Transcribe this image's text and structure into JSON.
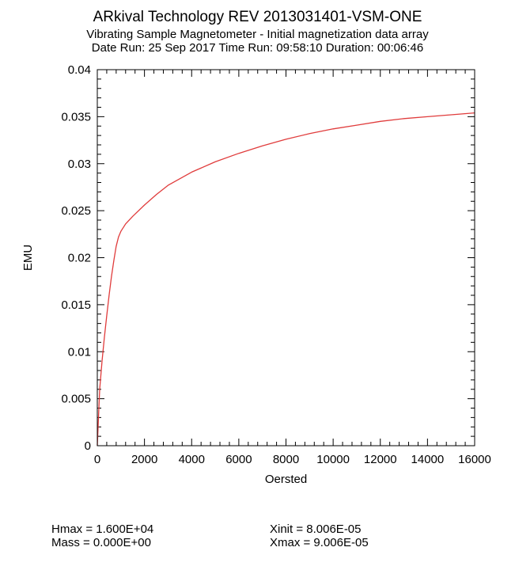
{
  "header": {
    "title": "ARkival Technology REV 2013031401-VSM-ONE",
    "subtitle": "Vibrating Sample Magnetometer - Initial magnetization data array",
    "run_info": "Date Run: 25 Sep 2017 Time Run: 09:58:10 Duration: 00:06:46"
  },
  "footer": {
    "hmax": "Hmax = 1.600E+04",
    "mass": "Mass = 0.000E+00",
    "xinit": "Xinit = 8.006E-05",
    "xmax": "Xmax = 9.006E-05"
  },
  "chart_data": {
    "type": "line",
    "xlabel": "Oersted",
    "ylabel": "EMU",
    "xlim": [
      0,
      16000
    ],
    "ylim": [
      0,
      0.04
    ],
    "xticks": [
      0,
      2000,
      4000,
      6000,
      8000,
      10000,
      12000,
      14000,
      16000
    ],
    "xtick_labels": [
      "0",
      "2000",
      "4000",
      "6000",
      "8000",
      "10000",
      "12000",
      "14000",
      "16000"
    ],
    "yticks": [
      0,
      0.005,
      0.01,
      0.015,
      0.02,
      0.025,
      0.03,
      0.035,
      0.04
    ],
    "ytick_labels": [
      "0",
      "0.005",
      "0.01",
      "0.015",
      "0.02",
      "0.025",
      "0.03",
      "0.035",
      "0.04"
    ],
    "grid": false,
    "series": [
      {
        "color": "#e03c3c",
        "x": [
          0,
          50,
          100,
          200,
          300,
          400,
          500,
          600,
          700,
          800,
          900,
          1000,
          1200,
          1500,
          2000,
          2500,
          3000,
          4000,
          5000,
          6000,
          7000,
          8000,
          9000,
          10000,
          11000,
          12000,
          13000,
          14000,
          15000,
          16000
        ],
        "y": [
          0,
          0.003,
          0.006,
          0.009,
          0.0115,
          0.0138,
          0.016,
          0.018,
          0.0197,
          0.0212,
          0.0222,
          0.0228,
          0.0236,
          0.0244,
          0.0256,
          0.0267,
          0.0277,
          0.0291,
          0.0302,
          0.0311,
          0.0319,
          0.0326,
          0.0332,
          0.0337,
          0.0341,
          0.0345,
          0.0348,
          0.035,
          0.0352,
          0.0354
        ]
      }
    ]
  }
}
